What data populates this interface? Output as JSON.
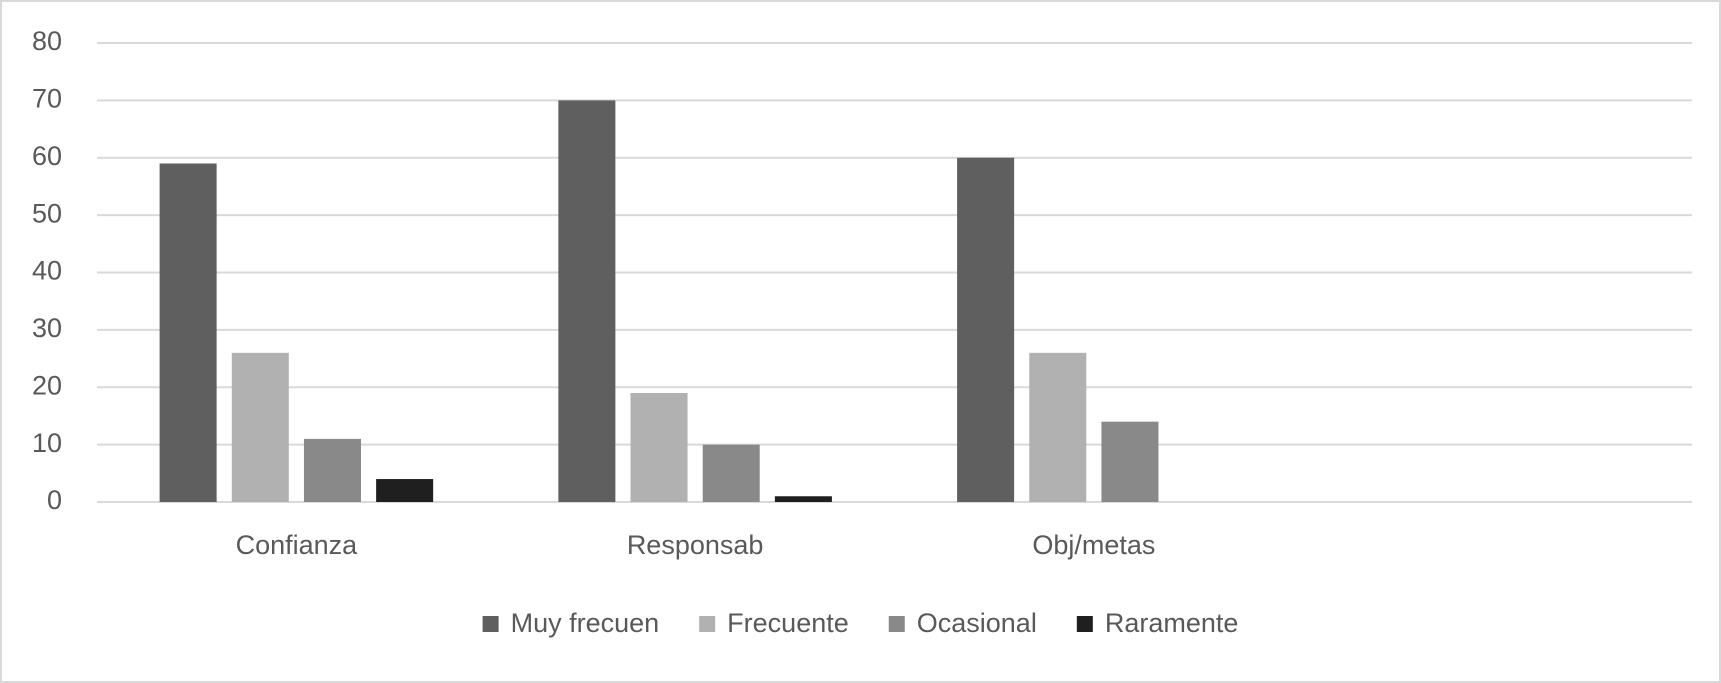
{
  "chart_data": {
    "type": "bar",
    "categories": [
      "Confianza",
      "Responsab",
      "Obj/metas",
      null
    ],
    "series": [
      {
        "name": "Muy frecuen",
        "color": "#5f5f5f",
        "values": [
          59,
          70,
          60,
          null
        ]
      },
      {
        "name": "Frecuente",
        "color": "#b1b1b1",
        "values": [
          26,
          19,
          26,
          null
        ]
      },
      {
        "name": "Ocasional",
        "color": "#898989",
        "values": [
          11,
          10,
          14,
          null
        ]
      },
      {
        "name": "Raramente",
        "color": "#1f1f1f",
        "values": [
          4,
          1,
          0,
          null
        ]
      }
    ],
    "ylim": [
      0,
      80
    ],
    "yticks": [
      0,
      10,
      20,
      30,
      40,
      50,
      60,
      70,
      80
    ],
    "grid": true,
    "legend": "bottom"
  }
}
